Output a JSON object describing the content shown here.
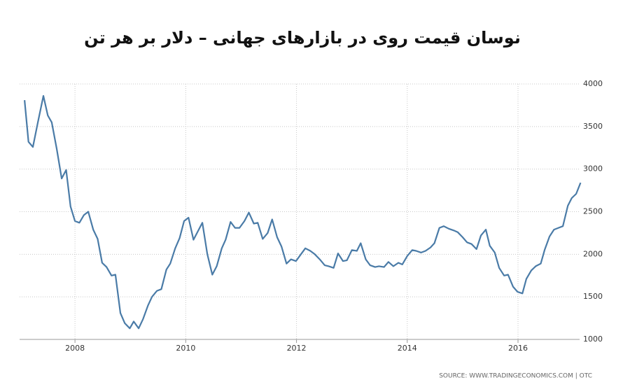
{
  "chart_data": {
    "type": "line",
    "title": "نوسان قیمت روی در بازارهای جهانی – دلار بر هر تن",
    "source": "SOURCE: WWW.TRADINGECONOMICS.COM | OTC",
    "x": [
      2007.09,
      2007.16,
      2007.24,
      2007.33,
      2007.43,
      2007.51,
      2007.58,
      2007.67,
      2007.76,
      2007.84,
      2007.92,
      2008.0,
      2008.08,
      2008.16,
      2008.24,
      2008.33,
      2008.41,
      2008.49,
      2008.57,
      2008.66,
      2008.73,
      2008.82,
      2008.9,
      2008.99,
      2009.06,
      2009.15,
      2009.23,
      2009.32,
      2009.39,
      2009.48,
      2009.56,
      2009.65,
      2009.72,
      2009.81,
      2009.89,
      2009.97,
      2010.05,
      2010.14,
      2010.22,
      2010.3,
      2010.39,
      2010.48,
      2010.56,
      2010.65,
      2010.72,
      2010.81,
      2010.89,
      2010.97,
      2011.06,
      2011.14,
      2011.23,
      2011.3,
      2011.39,
      2011.48,
      2011.56,
      2011.65,
      2011.73,
      2011.82,
      2011.9,
      2011.99,
      2012.08,
      2012.16,
      2012.25,
      2012.33,
      2012.42,
      2012.51,
      2012.58,
      2012.67,
      2012.75,
      2012.84,
      2012.91,
      2013.0,
      2013.09,
      2013.16,
      2013.25,
      2013.33,
      2013.42,
      2013.49,
      2013.58,
      2013.66,
      2013.75,
      2013.84,
      2013.91,
      2014.0,
      2014.09,
      2014.16,
      2014.25,
      2014.33,
      2014.42,
      2014.49,
      2014.58,
      2014.66,
      2014.75,
      2014.84,
      2014.91,
      2015.0,
      2015.08,
      2015.16,
      2015.25,
      2015.33,
      2015.42,
      2015.49,
      2015.58,
      2015.66,
      2015.75,
      2015.82,
      2015.91,
      2015.99,
      2016.08,
      2016.15,
      2016.24,
      2016.32,
      2016.41,
      2016.48,
      2016.57,
      2016.65,
      2016.73,
      2016.81,
      2016.9,
      2016.97,
      2017.05,
      2017.13
    ],
    "series": [
      {
        "color": "#4a7ba7",
        "values": [
          3810,
          3320,
          3260,
          3550,
          3860,
          3630,
          3550,
          3240,
          2890,
          2990,
          2560,
          2390,
          2370,
          2460,
          2500,
          2290,
          2180,
          1900,
          1850,
          1750,
          1760,
          1310,
          1190,
          1130,
          1210,
          1130,
          1240,
          1400,
          1500,
          1570,
          1590,
          1820,
          1890,
          2070,
          2190,
          2390,
          2430,
          2170,
          2270,
          2370,
          2000,
          1760,
          1860,
          2070,
          2170,
          2380,
          2310,
          2310,
          2390,
          2490,
          2360,
          2370,
          2180,
          2250,
          2410,
          2200,
          2090,
          1890,
          1940,
          1920,
          2000,
          2070,
          2040,
          2000,
          1940,
          1870,
          1860,
          1840,
          2010,
          1920,
          1930,
          2050,
          2040,
          2130,
          1940,
          1870,
          1850,
          1860,
          1850,
          1910,
          1860,
          1900,
          1880,
          1980,
          2050,
          2040,
          2020,
          2040,
          2080,
          2130,
          2310,
          2330,
          2300,
          2280,
          2260,
          2200,
          2140,
          2120,
          2060,
          2220,
          2290,
          2100,
          2020,
          1840,
          1750,
          1760,
          1620,
          1560,
          1540,
          1710,
          1810,
          1860,
          1890,
          2050,
          2210,
          2290,
          2310,
          2330,
          2570,
          2660,
          2710,
          2840
        ]
      }
    ],
    "xlim": [
      2007.0,
      2017.15
    ],
    "xticks": [
      2008,
      2010,
      2012,
      2014,
      2016
    ],
    "ylim": [
      1000,
      4000
    ],
    "yticks": [
      1000,
      1500,
      2000,
      2500,
      3000,
      3500,
      4000
    ],
    "grid": true
  }
}
